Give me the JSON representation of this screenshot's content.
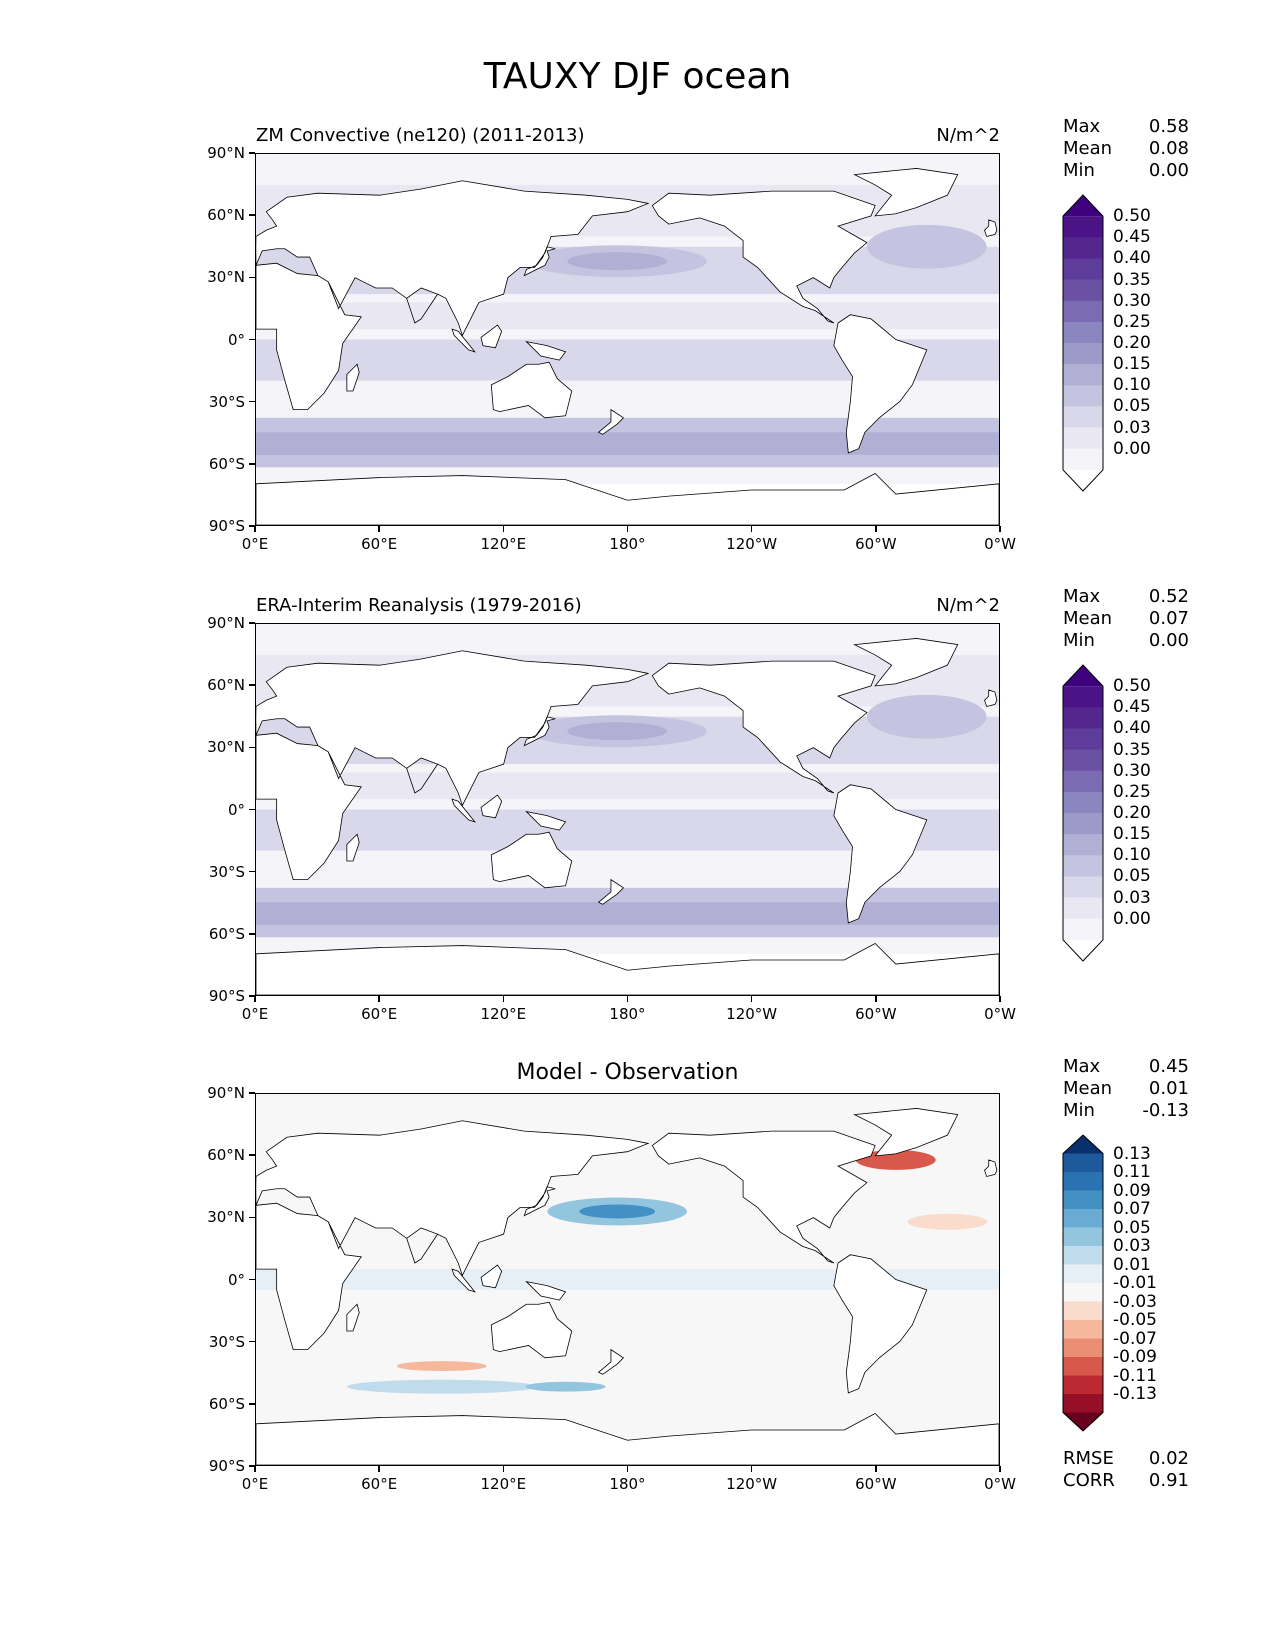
{
  "figure": {
    "title": "TAUXY DJF ocean"
  },
  "axes": {
    "yticks": [
      "90°N",
      "60°N",
      "30°N",
      "0°",
      "30°S",
      "60°S",
      "90°S"
    ],
    "xticks": [
      "0°E",
      "60°E",
      "120°E",
      "180°",
      "120°W",
      "60°W",
      "0°W"
    ]
  },
  "panels": [
    {
      "title_left": "ZM Convective (ne120) (2011-2013)",
      "title_right": "N/m^2",
      "title_center": "",
      "stats": [
        {
          "label": "Max",
          "value": "0.58"
        },
        {
          "label": "Mean",
          "value": "0.08"
        },
        {
          "label": "Min",
          "value": "0.00"
        }
      ],
      "colorbar": {
        "labels": [
          "0.50",
          "0.45",
          "0.40",
          "0.35",
          "0.30",
          "0.25",
          "0.20",
          "0.15",
          "0.10",
          "0.05",
          "0.03",
          "0.00"
        ],
        "colors": [
          "#3f007d",
          "#4a1486",
          "#54278f",
          "#5e3c99",
          "#6a51a3",
          "#7a6bb3",
          "#8c86c0",
          "#9e9ac8",
          "#b1afd4",
          "#c4c4e0",
          "#d8d8ea",
          "#e9e8f2",
          "#f5f4f9",
          "#ffffff"
        ],
        "cmap": "purples"
      },
      "extra_stats": []
    },
    {
      "title_left": "ERA-Interim Reanalysis (1979-2016)",
      "title_right": "N/m^2",
      "title_center": "",
      "stats": [
        {
          "label": "Max",
          "value": "0.52"
        },
        {
          "label": "Mean",
          "value": "0.07"
        },
        {
          "label": "Min",
          "value": "0.00"
        }
      ],
      "colorbar": {
        "labels": [
          "0.50",
          "0.45",
          "0.40",
          "0.35",
          "0.30",
          "0.25",
          "0.20",
          "0.15",
          "0.10",
          "0.05",
          "0.03",
          "0.00"
        ],
        "colors": [
          "#3f007d",
          "#4a1486",
          "#54278f",
          "#5e3c99",
          "#6a51a3",
          "#7a6bb3",
          "#8c86c0",
          "#9e9ac8",
          "#b1afd4",
          "#c4c4e0",
          "#d8d8ea",
          "#e9e8f2",
          "#f5f4f9",
          "#ffffff"
        ],
        "cmap": "purples"
      },
      "extra_stats": []
    },
    {
      "title_left": "",
      "title_right": "",
      "title_center": "Model - Observation",
      "stats": [
        {
          "label": "Max",
          "value": "0.45"
        },
        {
          "label": "Mean",
          "value": "0.01"
        },
        {
          "label": "Min",
          "value": "-0.13"
        }
      ],
      "colorbar": {
        "labels": [
          "0.13",
          "0.11",
          "0.09",
          "0.07",
          "0.05",
          "0.03",
          "0.01",
          "-0.01",
          "-0.03",
          "-0.05",
          "-0.07",
          "-0.09",
          "-0.11",
          "-0.13"
        ],
        "colors": [
          "#08306b",
          "#1c5a9c",
          "#2b72b3",
          "#4391c4",
          "#6aabd3",
          "#94c5df",
          "#c0dbeb",
          "#e6eff5",
          "#f7f7f7",
          "#f9dccb",
          "#f6b89c",
          "#eb8f74",
          "#d8594b",
          "#bb2a33",
          "#960f26",
          "#67001f"
        ],
        "cmap": "RdBu_r"
      },
      "extra_stats": [
        {
          "label": "RMSE",
          "value": "0.02"
        },
        {
          "label": "CORR",
          "value": "0.91"
        }
      ]
    }
  ]
}
